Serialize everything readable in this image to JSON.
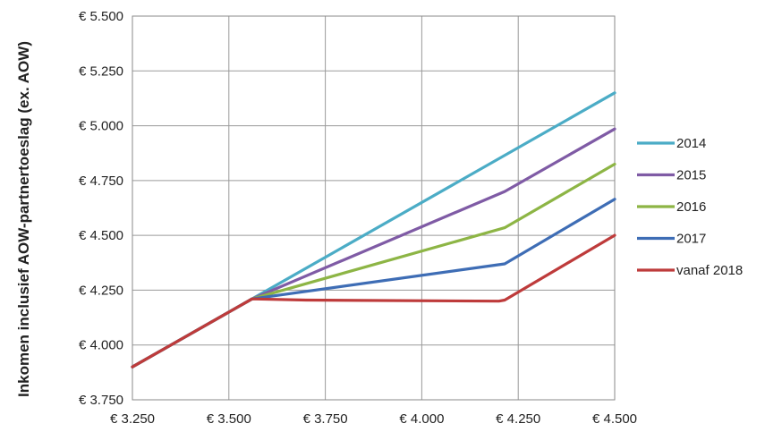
{
  "chart_data": {
    "type": "line",
    "title": "",
    "xlabel": "",
    "ylabel": "Inkomen inclusief AOW-partnertoeslag (ex. AOW)",
    "xlim": [
      3250,
      4500
    ],
    "ylim": [
      3750,
      5500
    ],
    "grid": true,
    "legend_position": "right",
    "x_tick_values": [
      3250,
      3500,
      3750,
      4000,
      4250,
      4500
    ],
    "y_tick_values": [
      3750,
      4000,
      4250,
      4500,
      4750,
      5000,
      5250,
      5500
    ],
    "x_tick_labels": [
      "€ 3.250",
      "€ 3.500",
      "€ 3.750",
      "€ 4.000",
      "€ 4.250",
      "€ 4.500"
    ],
    "y_tick_labels": [
      "€ 3.750",
      "€ 4.000",
      "€ 4.250",
      "€ 4.500",
      "€ 4.750",
      "€ 5.000",
      "€ 5.250",
      "€ 5.500"
    ],
    "series": [
      {
        "name": "2014",
        "color": "#4bacc6",
        "points": [
          [
            3250,
            3900
          ],
          [
            3560,
            4210
          ],
          [
            4500,
            5150
          ]
        ]
      },
      {
        "name": "2015",
        "color": "#7f5ba5",
        "points": [
          [
            3250,
            3900
          ],
          [
            3560,
            4210
          ],
          [
            4215,
            4700
          ],
          [
            4500,
            4985
          ]
        ]
      },
      {
        "name": "2016",
        "color": "#8db545",
        "points": [
          [
            3250,
            3900
          ],
          [
            3560,
            4210
          ],
          [
            4215,
            4535
          ],
          [
            4500,
            4825
          ]
        ]
      },
      {
        "name": "2017",
        "color": "#3e6db5",
        "points": [
          [
            3250,
            3900
          ],
          [
            3560,
            4210
          ],
          [
            4215,
            4370
          ],
          [
            4500,
            4665
          ]
        ]
      },
      {
        "name": "vanaf 2018",
        "color": "#be3b3b",
        "points": [
          [
            3250,
            3900
          ],
          [
            3560,
            4210
          ],
          [
            3700,
            4205
          ],
          [
            4200,
            4200
          ],
          [
            4215,
            4205
          ],
          [
            4500,
            4500
          ]
        ]
      }
    ]
  }
}
